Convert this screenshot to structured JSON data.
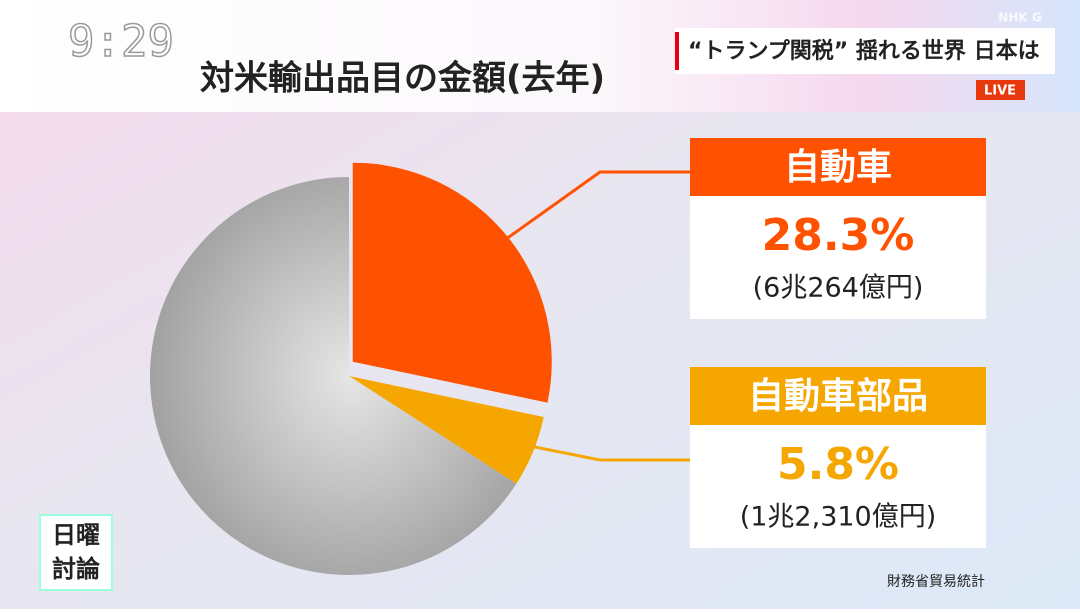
{
  "clock": "9:29",
  "banner": "“トランプ関税” 揺れる世界 日本は",
  "live": "LIVE",
  "channel_logo": "NHK G",
  "program_logo": [
    "日曜",
    "討論"
  ],
  "chart_data": {
    "type": "pie",
    "title": "対米輸出品目の金額(去年)",
    "categories": [
      "自動車",
      "自動車部品",
      null
    ],
    "values": [
      28.3,
      5.8,
      65.9
    ],
    "value_labels": [
      "28.3%",
      "5.8%",
      null
    ],
    "amounts": [
      "(6兆264億円)",
      "(1兆2,310億円)",
      null
    ],
    "colors": [
      "#ff5200",
      "#f5a600",
      "#9b9b9b"
    ],
    "source": "財務省貿易統計"
  }
}
